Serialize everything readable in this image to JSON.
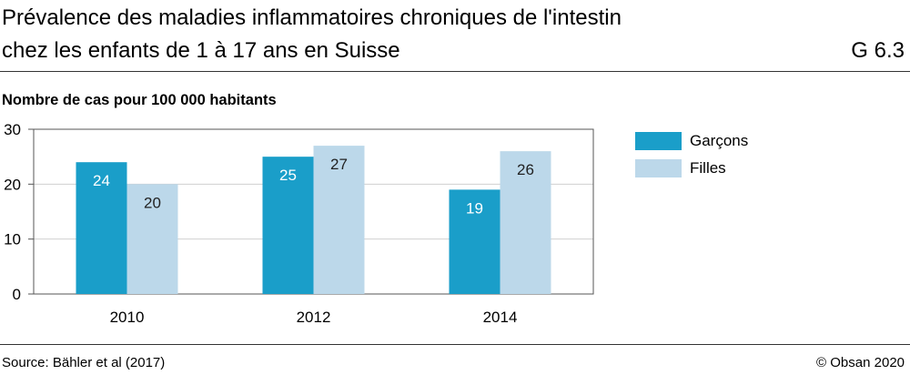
{
  "header": {
    "title_line1": "Prévalence des maladies inflammatoires chroniques de l'intestin",
    "title_line2": "chez les enfants de 1 à 17 ans en Suisse",
    "code": "G 6.3"
  },
  "footer": {
    "source": "Source: Bähler et al (2017)",
    "copyright": "© Obsan 2020"
  },
  "colors": {
    "garcons": "#1a9ec9",
    "filles": "#bcd8ea"
  },
  "chart_data": {
    "type": "bar",
    "title": "Prévalence des maladies inflammatoires chroniques de l'intestin chez les enfants de 1 à 17 ans en Suisse",
    "ylabel": "Nombre de cas pour 100 000 habitants",
    "xlabel": "",
    "categories": [
      "2010",
      "2012",
      "2014"
    ],
    "series": [
      {
        "name": "Garçons",
        "values": [
          24,
          25,
          19
        ]
      },
      {
        "name": "Filles",
        "values": [
          20,
          27,
          26
        ]
      }
    ],
    "ylim": [
      0,
      30
    ],
    "yticks": [
      0,
      10,
      20,
      30
    ],
    "grid": true,
    "legend": "right"
  }
}
